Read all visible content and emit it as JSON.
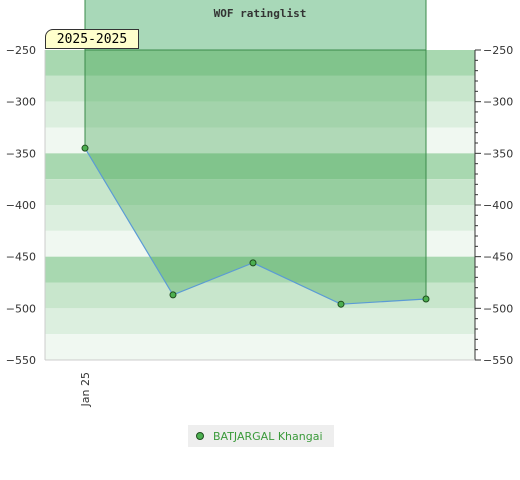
{
  "chart_data": {
    "type": "area",
    "title": "WOF ratinglist",
    "period_label": "2025-2025",
    "x_tick_labels": [
      "Jan 25"
    ],
    "y_ticks": [
      -250,
      -300,
      -350,
      -400,
      -450,
      -500,
      -550
    ],
    "ylim": [
      -550,
      -250
    ],
    "y_reversed_top": -250,
    "grid": true,
    "legend_position": "bottom",
    "series": [
      {
        "name": "BATJARGAL Khangai",
        "values": [
          -345,
          -487,
          -456,
          -496,
          -491
        ]
      }
    ],
    "colors": {
      "line": "#5b9bd5",
      "fill": "#3aa04a",
      "marker": "#4caf50",
      "marker_stroke": "#1e4d1e"
    }
  }
}
